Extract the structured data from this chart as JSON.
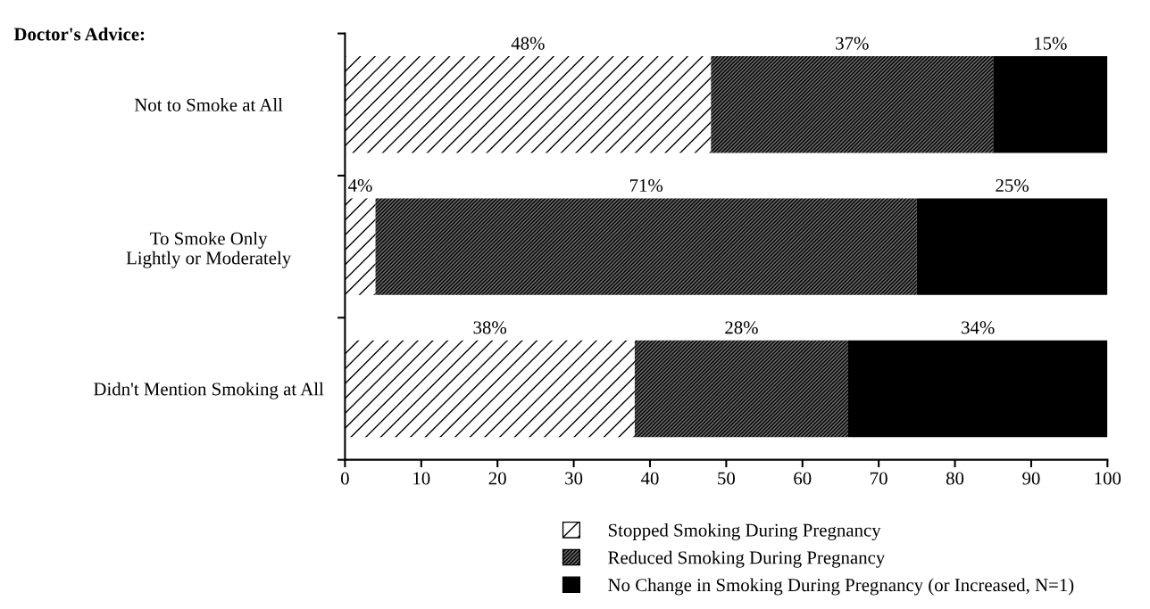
{
  "chart_data": {
    "type": "bar",
    "orientation": "horizontal",
    "stacked": true,
    "categories": [
      "Not to Smoke at All",
      "To Smoke Only\nLightly or Moderately",
      "Didn't Mention Smoking at All"
    ],
    "series": [
      {
        "name": "Stopped Smoking During Pregnancy",
        "color": "#ffffff",
        "values": [
          48,
          4,
          38
        ],
        "value_labels": [
          "48%",
          "4%",
          "38%"
        ]
      },
      {
        "name": "Reduced Smoking During Pregnancy",
        "color": "#6a6a6a",
        "values": [
          37,
          71,
          28
        ],
        "value_labels": [
          "37%",
          "71%",
          "28%"
        ]
      },
      {
        "name": "No Change in Smoking During Pregnancy (or Increased, N=1)",
        "color": "#000000",
        "values": [
          15,
          25,
          34
        ],
        "value_labels": [
          "15%",
          "25%",
          "34%"
        ]
      }
    ],
    "xlim": [
      0,
      100
    ],
    "xticks": [
      0,
      10,
      20,
      30,
      40,
      50,
      60,
      70,
      80,
      90,
      100
    ],
    "annotations": [
      "Doctor's Advice:"
    ],
    "legend": "bottom",
    "grid": false
  }
}
